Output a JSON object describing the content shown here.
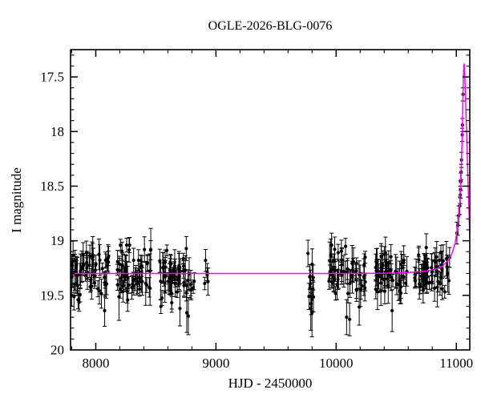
{
  "figure": {
    "title": "OGLE-2026-BLG-0076",
    "xlabel": "HJD - 2450000",
    "ylabel": "I magnitude"
  },
  "chart_data": {
    "type": "scatter",
    "title": "OGLE-2026-BLG-0076",
    "xlabel": "HJD - 2450000",
    "ylabel": "I magnitude",
    "x_range": [
      7790,
      11112
    ],
    "y_range_top": 17.25,
    "y_range_bottom": 20.0,
    "x_major_ticks": [
      8000,
      9000,
      10000,
      11000
    ],
    "x_minor_step": 200,
    "y_major_ticks": [
      17.5,
      18.0,
      18.5,
      19.0,
      19.5,
      20.0
    ],
    "y_minor_step": 0.1,
    "baseline_mag": 19.3,
    "peak_mag": 17.38,
    "peak_hjd": 11065,
    "colors": {
      "points": "#000000",
      "model_curve": "#ff00ff",
      "axis": "#000000",
      "background": "#ffffff"
    },
    "scatter_seed": 20260076,
    "season_clusters": [
      {
        "hjd_min": 7795,
        "hjd_max": 8110,
        "n": 64,
        "mag_mean": 19.31,
        "mag_sigma": 0.115,
        "err_mean": 0.1
      },
      {
        "hjd_min": 8165,
        "hjd_max": 8465,
        "n": 58,
        "mag_mean": 19.31,
        "mag_sigma": 0.115,
        "err_mean": 0.1
      },
      {
        "hjd_min": 8516,
        "hjd_max": 8825,
        "n": 58,
        "mag_mean": 19.32,
        "mag_sigma": 0.115,
        "err_mean": 0.1
      },
      {
        "hjd_min": 8905,
        "hjd_max": 8935,
        "n": 5,
        "mag_mean": 19.32,
        "mag_sigma": 0.1,
        "err_mean": 0.09
      },
      {
        "hjd_min": 9765,
        "hjd_max": 9815,
        "n": 11,
        "mag_mean": 19.38,
        "mag_sigma": 0.13,
        "err_mean": 0.11
      },
      {
        "hjd_min": 9930,
        "hjd_max": 10245,
        "n": 55,
        "mag_mean": 19.31,
        "mag_sigma": 0.115,
        "err_mean": 0.1
      },
      {
        "hjd_min": 10325,
        "hjd_max": 10595,
        "n": 50,
        "mag_mean": 19.31,
        "mag_sigma": 0.115,
        "err_mean": 0.1
      },
      {
        "hjd_min": 10640,
        "hjd_max": 10950,
        "n": 55,
        "mag_mean": 19.3,
        "mag_sigma": 0.11,
        "err_mean": 0.1
      }
    ],
    "outlier_points": [
      [
        8700,
        19.62,
        0.16
      ],
      [
        8757,
        19.66,
        0.18
      ],
      [
        8770,
        19.69,
        0.17
      ],
      [
        9789,
        19.62,
        0.2
      ],
      [
        9799,
        19.66,
        0.22
      ],
      [
        10087,
        19.7,
        0.16
      ],
      [
        10112,
        19.72,
        0.15
      ]
    ],
    "rise_points": [
      [
        11005,
        18.93,
        0.1
      ],
      [
        11013,
        18.86,
        0.09
      ],
      [
        11020,
        18.77,
        0.09
      ],
      [
        11029,
        18.68,
        0.08
      ],
      [
        11033,
        18.58,
        0.08
      ],
      [
        11035,
        18.53,
        0.08
      ],
      [
        11037,
        18.46,
        0.08
      ],
      [
        11040,
        18.37,
        0.07
      ],
      [
        11043,
        18.26,
        0.07
      ],
      [
        11049,
        18.03,
        0.06
      ],
      [
        11051,
        17.94,
        0.06
      ],
      [
        11056,
        17.66,
        0.06
      ]
    ],
    "model_curve": [
      [
        7790,
        19.3
      ],
      [
        9000,
        19.3
      ],
      [
        10200,
        19.3
      ],
      [
        10500,
        19.295
      ],
      [
        10700,
        19.285
      ],
      [
        10820,
        19.265
      ],
      [
        10880,
        19.235
      ],
      [
        10930,
        19.185
      ],
      [
        10965,
        19.115
      ],
      [
        10990,
        19.02
      ],
      [
        11008,
        18.9
      ],
      [
        11020,
        18.78
      ],
      [
        11030,
        18.62
      ],
      [
        11038,
        18.42
      ],
      [
        11044,
        18.22
      ],
      [
        11049,
        18.02
      ],
      [
        11053,
        17.82
      ],
      [
        11056,
        17.64
      ],
      [
        11059,
        17.5
      ],
      [
        11061,
        17.43
      ],
      [
        11063,
        17.39
      ],
      [
        11065,
        17.38
      ],
      [
        11067,
        17.4
      ],
      [
        11070,
        17.47
      ],
      [
        11074,
        17.6
      ],
      [
        11079,
        17.78
      ],
      [
        11085,
        18.0
      ],
      [
        11092,
        18.26
      ],
      [
        11100,
        18.55
      ],
      [
        11108,
        18.82
      ],
      [
        11112,
        18.96
      ]
    ]
  }
}
